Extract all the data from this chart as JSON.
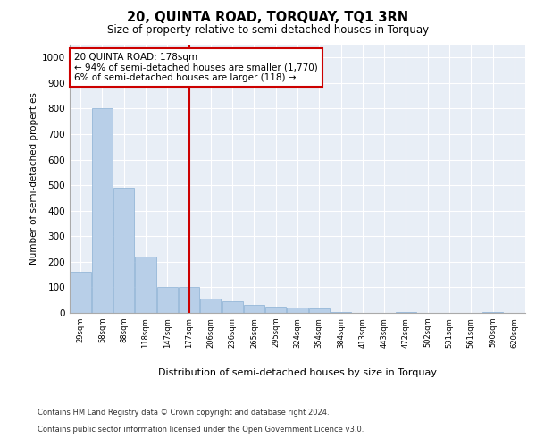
{
  "title": "20, QUINTA ROAD, TORQUAY, TQ1 3RN",
  "subtitle": "Size of property relative to semi-detached houses in Torquay",
  "xlabel": "Distribution of semi-detached houses by size in Torquay",
  "ylabel": "Number of semi-detached properties",
  "categories": [
    "29sqm",
    "58sqm",
    "88sqm",
    "118sqm",
    "147sqm",
    "177sqm",
    "206sqm",
    "236sqm",
    "265sqm",
    "295sqm",
    "324sqm",
    "354sqm",
    "384sqm",
    "413sqm",
    "443sqm",
    "472sqm",
    "502sqm",
    "531sqm",
    "561sqm",
    "590sqm",
    "620sqm"
  ],
  "values": [
    160,
    800,
    490,
    220,
    100,
    100,
    55,
    45,
    30,
    25,
    20,
    18,
    5,
    0,
    0,
    5,
    0,
    0,
    0,
    5,
    0
  ],
  "bar_color": "#b8cfe8",
  "bar_edge_color": "#8ab0d4",
  "property_bin_index": 5,
  "annotation_text": "20 QUINTA ROAD: 178sqm\n← 94% of semi-detached houses are smaller (1,770)\n6% of semi-detached houses are larger (118) →",
  "annotation_box_color": "#ffffff",
  "annotation_box_edge_color": "#cc0000",
  "vline_color": "#cc0000",
  "ylim": [
    0,
    1050
  ],
  "yticks": [
    0,
    100,
    200,
    300,
    400,
    500,
    600,
    700,
    800,
    900,
    1000
  ],
  "plot_bg_color": "#e8eef6",
  "grid_color": "#ffffff",
  "footer_line1": "Contains HM Land Registry data © Crown copyright and database right 2024.",
  "footer_line2": "Contains public sector information licensed under the Open Government Licence v3.0."
}
